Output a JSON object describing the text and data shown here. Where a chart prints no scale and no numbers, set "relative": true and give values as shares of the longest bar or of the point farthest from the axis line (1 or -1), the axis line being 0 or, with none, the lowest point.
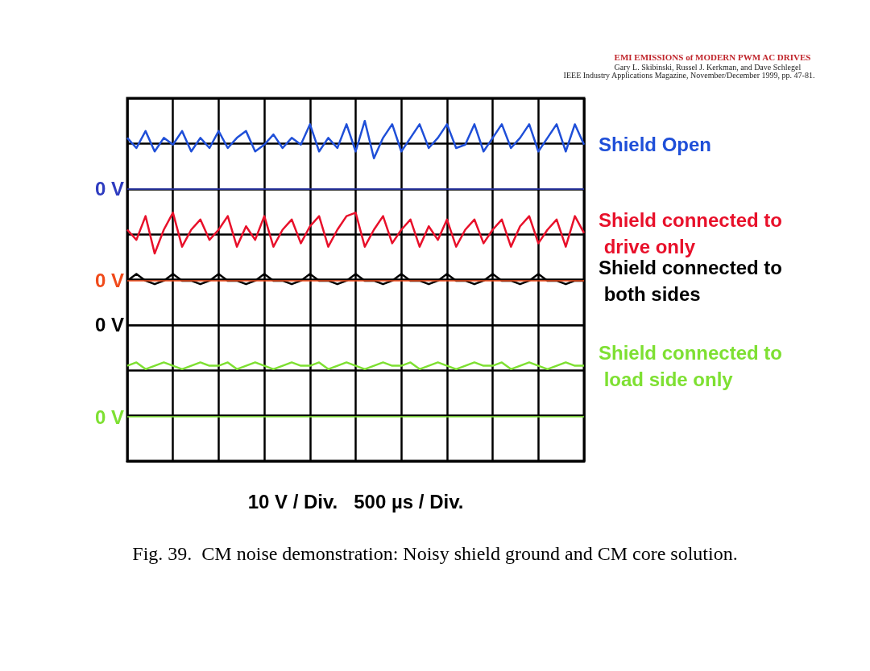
{
  "chart_data": {
    "type": "line",
    "title": "EMI EMISSIONS of MODERN PWM AC DRIVES",
    "subtitle": "Gary L. Skibinski, Russel J. Kerkman, and Dave Schlegel",
    "annotations": [
      "IEEE Industry Applications Magazine, November/December 1999, pp. 47-81.",
      "Fig. 39.  CM noise demonstration: Noisy shield ground and CM core solution."
    ],
    "xlabel": "10 V / Div.   500 µs / Div.",
    "categories": [
      null,
      null,
      null,
      null,
      null,
      null,
      null,
      null,
      null,
      null,
      null,
      null,
      null,
      null,
      null,
      null,
      null,
      null,
      null,
      null,
      null,
      null,
      null,
      null,
      null,
      null,
      null,
      null,
      null,
      null,
      null,
      null,
      null,
      null,
      null,
      null,
      null,
      null,
      null,
      null,
      null,
      null,
      null,
      null,
      null,
      null,
      null,
      null,
      null,
      null,
      null
    ],
    "relative": true,
    "series": [
      {
        "name": "Shield Open",
        "color": "#1f4fd8",
        "values": [
          0.95,
          0.92,
          0.97,
          0.91,
          0.95,
          0.93,
          0.97,
          0.91,
          0.95,
          0.92,
          0.97,
          0.92,
          0.95,
          0.97,
          0.91,
          0.93,
          0.96,
          0.92,
          0.95,
          0.93,
          0.99,
          0.91,
          0.95,
          0.92,
          0.99,
          0.91,
          1,
          0.89,
          0.95,
          0.99,
          0.91,
          0.95,
          0.99,
          0.92,
          0.95,
          0.99,
          0.92,
          0.93,
          0.99,
          0.91,
          0.95,
          0.99,
          0.92,
          0.95,
          0.99,
          0.91,
          0.95,
          0.99,
          0.91,
          0.99,
          0.93
        ]
      },
      {
        "name": "Shield connected to drive only",
        "color": "#e8102a",
        "values": [
          0.68,
          0.65,
          0.72,
          0.61,
          0.68,
          0.73,
          0.63,
          0.68,
          0.71,
          0.65,
          0.68,
          0.72,
          0.63,
          0.69,
          0.65,
          0.72,
          0.63,
          0.68,
          0.71,
          0.64,
          0.69,
          0.72,
          0.63,
          0.68,
          0.72,
          0.73,
          0.63,
          0.68,
          0.72,
          0.64,
          0.68,
          0.71,
          0.63,
          0.69,
          0.65,
          0.71,
          0.63,
          0.68,
          0.71,
          0.64,
          0.68,
          0.71,
          0.63,
          0.69,
          0.72,
          0.64,
          0.68,
          0.71,
          0.63,
          0.72,
          0.67
        ]
      },
      {
        "name": "Shield connected to both sides",
        "color": "#000000",
        "values": [
          0.53,
          0.55,
          0.53,
          0.52,
          0.53,
          0.55,
          0.53,
          0.53,
          0.52,
          0.53,
          0.55,
          0.53,
          0.53,
          0.52,
          0.53,
          0.55,
          0.53,
          0.53,
          0.52,
          0.53,
          0.55,
          0.53,
          0.53,
          0.52,
          0.53,
          0.55,
          0.53,
          0.53,
          0.52,
          0.53,
          0.55,
          0.53,
          0.53,
          0.52,
          0.53,
          0.55,
          0.53,
          0.53,
          0.52,
          0.53,
          0.55,
          0.53,
          0.53,
          0.52,
          0.53,
          0.55,
          0.53,
          0.53,
          0.52,
          0.53,
          0.53
        ]
      },
      {
        "name": "Shield connected to load side only",
        "color": "#7ee032",
        "values": [
          0.28,
          0.29,
          0.27,
          0.28,
          0.29,
          0.28,
          0.27,
          0.28,
          0.29,
          0.28,
          0.28,
          0.29,
          0.27,
          0.28,
          0.29,
          0.28,
          0.27,
          0.28,
          0.29,
          0.28,
          0.28,
          0.29,
          0.27,
          0.28,
          0.29,
          0.28,
          0.27,
          0.28,
          0.29,
          0.28,
          0.28,
          0.29,
          0.27,
          0.28,
          0.29,
          0.28,
          0.27,
          0.28,
          0.29,
          0.28,
          0.28,
          0.29,
          0.27,
          0.28,
          0.29,
          0.28,
          0.27,
          0.28,
          0.29,
          0.28,
          0.28
        ]
      }
    ],
    "ref_lines": [
      {
        "axis": "y",
        "value": 0.8,
        "label": "0 V",
        "color": "#2e3cc0"
      },
      {
        "axis": "y",
        "value": 0.53,
        "label": "0 V",
        "color": "#f04a1a"
      },
      {
        "axis": "y",
        "value": 0.4,
        "label": "0 V",
        "color": "#000000"
      },
      {
        "axis": "y",
        "value": 0.13,
        "label": "0 V",
        "color": "#7ee032"
      }
    ],
    "grid": true,
    "marker": "none",
    "line_style": "solid"
  }
}
